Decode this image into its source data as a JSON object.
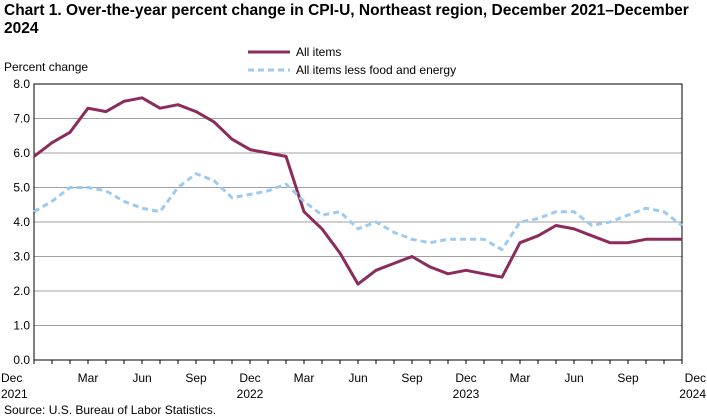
{
  "chart_data": {
    "type": "line",
    "title": "Chart 1. Over-the-year percent change in CPI-U, Northeast region, December 2021–December 2024",
    "ylabel": "Percent change",
    "xlabel": "",
    "ylim": [
      0,
      8
    ],
    "yticks": [
      "0.0",
      "1.0",
      "2.0",
      "3.0",
      "4.0",
      "5.0",
      "6.0",
      "7.0",
      "8.0"
    ],
    "grid": true,
    "legend_position": "top-center",
    "x_tick_labels": [
      {
        "index": 0,
        "month": "Dec",
        "year": "2021"
      },
      {
        "index": 3,
        "month": "Mar",
        "year": ""
      },
      {
        "index": 6,
        "month": "Jun",
        "year": ""
      },
      {
        "index": 9,
        "month": "Sep",
        "year": ""
      },
      {
        "index": 12,
        "month": "Dec",
        "year": "2022"
      },
      {
        "index": 15,
        "month": "Mar",
        "year": ""
      },
      {
        "index": 18,
        "month": "Jun",
        "year": ""
      },
      {
        "index": 21,
        "month": "Sep",
        "year": ""
      },
      {
        "index": 24,
        "month": "Dec",
        "year": "2023"
      },
      {
        "index": 27,
        "month": "Mar",
        "year": ""
      },
      {
        "index": 30,
        "month": "Jun",
        "year": ""
      },
      {
        "index": 33,
        "month": "Sep",
        "year": ""
      },
      {
        "index": 36,
        "month": "Dec",
        "year": "2024"
      }
    ],
    "series": [
      {
        "name": "All items",
        "color": "#8B2C5C",
        "style": "solid",
        "values": [
          5.9,
          6.3,
          6.6,
          7.3,
          7.2,
          7.5,
          7.6,
          7.3,
          7.4,
          7.2,
          6.9,
          6.4,
          6.1,
          6.0,
          5.9,
          4.3,
          3.8,
          3.1,
          2.2,
          2.6,
          2.8,
          3.0,
          2.7,
          2.5,
          2.6,
          2.5,
          2.4,
          3.4,
          3.6,
          3.9,
          3.8,
          3.6,
          3.4,
          3.4,
          3.5,
          3.5,
          3.5
        ]
      },
      {
        "name": "All items less food and energy",
        "color": "#9DCBF0",
        "style": "dashed",
        "values": [
          4.3,
          4.6,
          5.0,
          5.0,
          4.9,
          4.6,
          4.4,
          4.3,
          5.0,
          5.4,
          5.2,
          4.7,
          4.8,
          4.9,
          5.1,
          4.6,
          4.2,
          4.3,
          3.8,
          4.0,
          3.7,
          3.5,
          3.4,
          3.5,
          3.5,
          3.5,
          3.2,
          4.0,
          4.1,
          4.3,
          4.3,
          3.9,
          4.0,
          4.2,
          4.4,
          4.3,
          3.9
        ]
      }
    ]
  },
  "source": "Source: U.S. Bureau of Labor Statistics."
}
